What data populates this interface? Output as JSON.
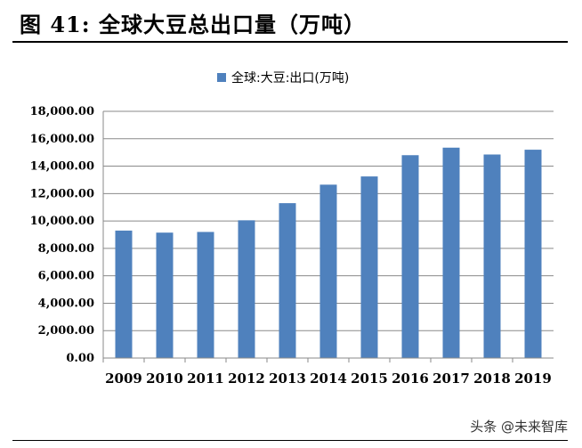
{
  "figure_title": "图  41:  全球大豆总出口量（万吨）",
  "watermark": "头条 @未来智库",
  "chart_data": {
    "type": "bar",
    "title": "",
    "legend": [
      "全球:大豆:出口(万吨)"
    ],
    "legend_position": "top-center",
    "categories": [
      "2009",
      "2010",
      "2011",
      "2012",
      "2013",
      "2014",
      "2015",
      "2016",
      "2017",
      "2018",
      "2019"
    ],
    "series": [
      {
        "name": "全球:大豆:出口(万吨)",
        "values": [
          9300,
          9150,
          9200,
          10050,
          11300,
          12650,
          13250,
          14800,
          15350,
          14850,
          15200
        ],
        "color": "#4f81bd"
      }
    ],
    "y_ticks": [
      "0.00",
      "2,000.00",
      "4,000.00",
      "6,000.00",
      "8,000.00",
      "10,000.00",
      "12,000.00",
      "14,000.00",
      "16,000.00",
      "18,000.00"
    ],
    "ylim": [
      0,
      18000
    ],
    "grid": true
  }
}
